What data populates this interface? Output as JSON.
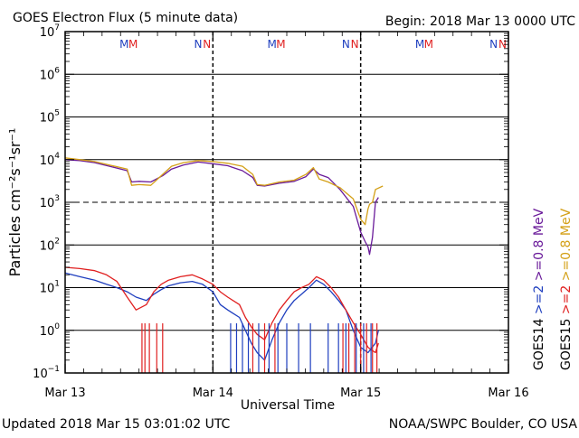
{
  "chart_data": {
    "type": "line",
    "title": "GOES Electron Flux (5 minute data)",
    "begin": "Begin: 2018 Mar 13 0000 UTC",
    "xlabel": "Universal Time",
    "ylabel": "Particles cm⁻²s⁻¹sr⁻¹",
    "updated": "Updated 2018 Mar 15 03:01:02 UTC",
    "credit": "NOAA/SWPC Boulder, CO USA",
    "x_unit": "days since 2018 Mar 13 0000 UTC",
    "xlim": [
      0,
      3
    ],
    "x_ticks": [
      {
        "x": 0,
        "label": "Mar 13"
      },
      {
        "x": 1,
        "label": "Mar 14"
      },
      {
        "x": 2,
        "label": "Mar 15"
      },
      {
        "x": 3,
        "label": "Mar 16"
      }
    ],
    "y_scale": "log",
    "ylim_exp": [
      -1,
      7
    ],
    "y_ticks": [
      {
        "exp": 7,
        "label": "10",
        "sup": "7"
      },
      {
        "exp": 6,
        "label": "10",
        "sup": "6"
      },
      {
        "exp": 5,
        "label": "10",
        "sup": "5"
      },
      {
        "exp": 4,
        "label": "10",
        "sup": "4"
      },
      {
        "exp": 3,
        "label": "10",
        "sup": "3"
      },
      {
        "exp": 2,
        "label": "10",
        "sup": "2"
      },
      {
        "exp": 1,
        "label": "10",
        "sup": "1"
      },
      {
        "exp": 0,
        "label": "10",
        "sup": "0"
      },
      {
        "exp": -1,
        "label": "10",
        "sup": "−1"
      }
    ],
    "alert_threshold_exp": 3,
    "day_dividers_dashed": [
      1,
      2
    ],
    "markers": [
      {
        "x": 0.4,
        "text": "M",
        "color": "#1f3fbf"
      },
      {
        "x": 0.46,
        "text": "M",
        "color": "#e02020"
      },
      {
        "x": 0.9,
        "text": "N",
        "color": "#1f3fbf"
      },
      {
        "x": 0.96,
        "text": "N",
        "color": "#e02020"
      },
      {
        "x": 1.4,
        "text": "M",
        "color": "#1f3fbf"
      },
      {
        "x": 1.46,
        "text": "M",
        "color": "#e02020"
      },
      {
        "x": 1.9,
        "text": "N",
        "color": "#1f3fbf"
      },
      {
        "x": 1.96,
        "text": "N",
        "color": "#e02020"
      },
      {
        "x": 2.4,
        "text": "M",
        "color": "#1f3fbf"
      },
      {
        "x": 2.46,
        "text": "M",
        "color": "#e02020"
      },
      {
        "x": 2.9,
        "text": "N",
        "color": "#1f3fbf"
      },
      {
        "x": 2.96,
        "text": "N",
        "color": "#e02020"
      }
    ],
    "legend": [
      {
        "prefix": "GOES14",
        "label": ">=2",
        "color": "#1f3fbf"
      },
      {
        "prefix": "",
        "label": ">=0.8 MeV",
        "color": "#6a1b9a"
      },
      {
        "prefix": "GOES15",
        "label": ">=2",
        "color": "#e02020"
      },
      {
        "prefix": "",
        "label": ">=0.8 MeV",
        "color": "#d4a017"
      }
    ],
    "series": [
      {
        "name": "GOES14 >=0.8 MeV",
        "color": "#6a1b9a",
        "x": [
          0,
          0.1,
          0.2,
          0.3,
          0.42,
          0.45,
          0.5,
          0.58,
          0.66,
          0.72,
          0.8,
          0.9,
          1.0,
          1.1,
          1.2,
          1.27,
          1.3,
          1.35,
          1.45,
          1.55,
          1.63,
          1.68,
          1.72,
          1.78,
          1.86,
          1.95,
          2.0,
          2.03,
          2.05,
          2.06,
          2.08,
          2.1,
          2.12
        ],
        "values": [
          10000,
          9500,
          8500,
          7000,
          5500,
          3000,
          3100,
          3000,
          4200,
          6000,
          7500,
          8800,
          8000,
          7200,
          5500,
          3800,
          2500,
          2400,
          2800,
          3100,
          4000,
          6000,
          4500,
          3800,
          2000,
          800,
          200,
          120,
          90,
          60,
          150,
          1000,
          1300
        ]
      },
      {
        "name": "GOES15 >=0.8 MeV",
        "color": "#d4a017",
        "x": [
          0,
          0.1,
          0.2,
          0.3,
          0.42,
          0.45,
          0.5,
          0.58,
          0.66,
          0.72,
          0.8,
          0.9,
          1.0,
          1.1,
          1.2,
          1.27,
          1.3,
          1.35,
          1.45,
          1.55,
          1.63,
          1.68,
          1.72,
          1.78,
          1.86,
          1.95,
          2.0,
          2.03,
          2.05,
          2.06,
          2.08,
          2.1,
          2.15
        ],
        "values": [
          11000,
          10000,
          9000,
          7500,
          6000,
          2500,
          2600,
          2500,
          4500,
          7000,
          8500,
          9500,
          9000,
          8200,
          7000,
          4500,
          2600,
          2500,
          3000,
          3300,
          4500,
          6500,
          3500,
          3000,
          2200,
          1200,
          400,
          300,
          700,
          900,
          1000,
          2000,
          2400
        ]
      },
      {
        "name": "GOES14 >=2 MeV",
        "color": "#1f3fbf",
        "x": [
          0,
          0.1,
          0.2,
          0.28,
          0.35,
          0.42,
          0.48,
          0.55,
          0.6,
          0.65,
          0.7,
          0.78,
          0.86,
          0.93,
          1.0,
          1.05,
          1.1,
          1.18,
          1.22,
          1.26,
          1.3,
          1.35,
          1.4,
          1.45,
          1.5,
          1.55,
          1.6,
          1.65,
          1.7,
          1.75,
          1.8,
          1.85,
          1.9,
          1.95,
          2.0,
          2.05,
          2.1,
          2.12
        ],
        "values": [
          22,
          18,
          15,
          12,
          10,
          8,
          6,
          5,
          7,
          9,
          11,
          13,
          14,
          12,
          8,
          4,
          3,
          2,
          1,
          0.5,
          0.3,
          0.2,
          0.6,
          1.5,
          3,
          5,
          7,
          10,
          15,
          12,
          8,
          5,
          3,
          1,
          0.4,
          0.3,
          0.5,
          1
        ]
      },
      {
        "name": "GOES15 >=2 MeV",
        "color": "#e02020",
        "x": [
          0,
          0.1,
          0.2,
          0.28,
          0.35,
          0.42,
          0.48,
          0.55,
          0.6,
          0.65,
          0.7,
          0.78,
          0.86,
          0.93,
          1.0,
          1.05,
          1.1,
          1.18,
          1.22,
          1.26,
          1.3,
          1.35,
          1.4,
          1.45,
          1.5,
          1.55,
          1.6,
          1.65,
          1.7,
          1.75,
          1.8,
          1.85,
          1.9,
          1.95,
          2.0,
          2.05,
          2.1,
          2.12
        ],
        "values": [
          30,
          28,
          25,
          20,
          14,
          6,
          3,
          4,
          8,
          12,
          15,
          18,
          20,
          16,
          12,
          8,
          6,
          4,
          2,
          1.2,
          0.8,
          0.6,
          1.5,
          3,
          5,
          8,
          10,
          12,
          18,
          15,
          10,
          6,
          3,
          1.5,
          0.8,
          0.4,
          0.3,
          0.5
        ]
      }
    ],
    "dropouts": [
      {
        "color": "#e02020",
        "x": [
          0.52,
          0.54,
          0.57,
          0.62,
          0.66,
          1.27,
          1.35,
          1.42,
          1.88,
          1.92,
          1.96,
          2.0,
          2.04,
          2.08,
          2.11
        ],
        "value": 0.1
      },
      {
        "color": "#1f3fbf",
        "x": [
          1.12,
          1.16,
          1.2,
          1.24,
          1.31,
          1.38,
          1.44,
          1.5,
          1.58,
          1.66,
          1.78,
          1.85,
          1.9,
          1.97,
          2.02,
          2.07
        ],
        "value": 0.1
      }
    ]
  }
}
